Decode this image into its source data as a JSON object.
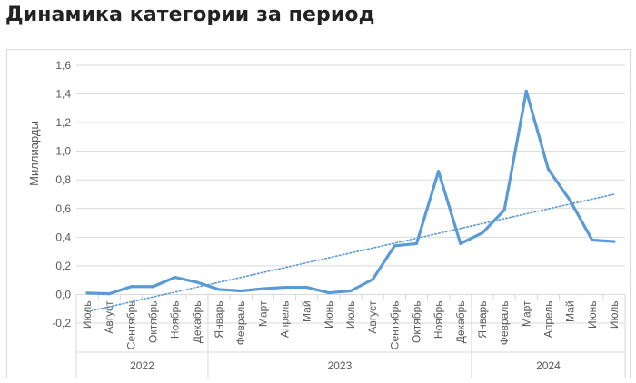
{
  "header": {
    "title": "Динамика категории за период"
  },
  "chart_data": {
    "type": "line",
    "title": "Динамика категории за период",
    "xlabel": "",
    "ylabel": "Миллиарды",
    "ylim": [
      -0.2,
      1.6
    ],
    "yticks": [
      -0.2,
      0.0,
      0.2,
      0.4,
      0.6,
      0.8,
      1.0,
      1.2,
      1.4,
      1.6
    ],
    "ytick_labels": [
      "-0,2",
      "0,0",
      "0,2",
      "0,4",
      "0,6",
      "0,8",
      "1,0",
      "1,2",
      "1,4",
      "1,6"
    ],
    "grid": "horizontal",
    "legend": "none",
    "categories": [
      "Июль",
      "Август",
      "Сентябрь",
      "Октябрь",
      "Ноябрь",
      "Декабрь",
      "Январь",
      "Февраль",
      "Март",
      "Апрель",
      "Май",
      "Июнь",
      "Июль",
      "Август",
      "Сентябрь",
      "Октябрь",
      "Ноябрь",
      "Декабрь",
      "Январь",
      "Февраль",
      "Март",
      "Апрель",
      "Май",
      "Июнь",
      "Июль"
    ],
    "year_groups": [
      {
        "label": "2022",
        "count": 6
      },
      {
        "label": "2023",
        "count": 12
      },
      {
        "label": "2024",
        "count": 7
      }
    ],
    "series": [
      {
        "values": [
          0.01,
          0.005,
          0.055,
          0.055,
          0.12,
          0.085,
          0.035,
          0.025,
          0.04,
          0.05,
          0.05,
          0.012,
          0.025,
          0.105,
          0.34,
          0.355,
          0.86,
          0.355,
          0.43,
          0.59,
          1.42,
          0.875,
          0.655,
          0.38,
          0.37
        ],
        "color": "#5b9bd5"
      }
    ],
    "trendline": {
      "kind": "linear",
      "style": "dotted",
      "color": "#5b9bd5",
      "start": -0.12,
      "end": 0.7
    },
    "colors": {
      "grid": "#d9d9d9",
      "axis_text": "#595959",
      "line": "#5b9bd5"
    }
  }
}
